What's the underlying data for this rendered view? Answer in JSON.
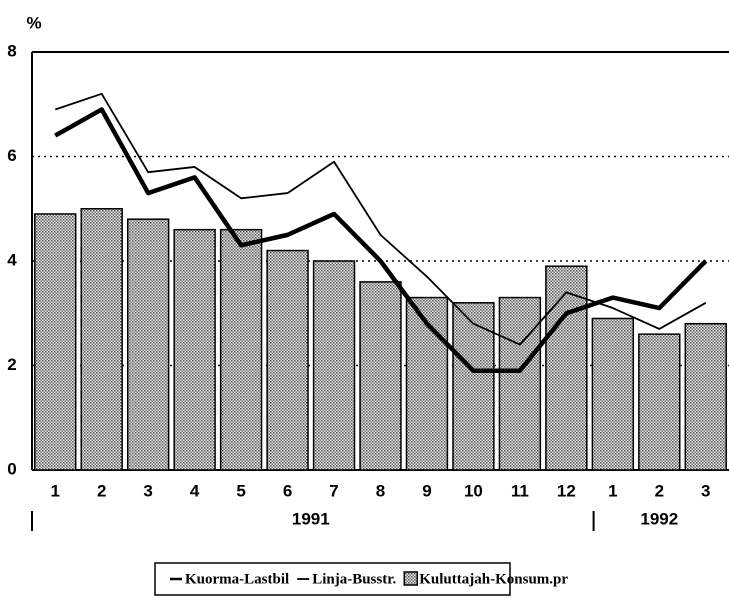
{
  "chart_data": {
    "type": "bar",
    "y_label": "%",
    "categories": [
      "1",
      "2",
      "3",
      "4",
      "5",
      "6",
      "7",
      "8",
      "9",
      "10",
      "11",
      "12",
      "1",
      "2",
      "3"
    ],
    "groups": [
      "1991",
      "1992"
    ],
    "ylim": [
      0,
      8
    ],
    "yticks": [
      0,
      2,
      4,
      6,
      8
    ],
    "grid": true,
    "legend": "bottom",
    "series": [
      {
        "name": "Kuorma-Lastbil",
        "type": "line",
        "color": "#000",
        "line_width": 4.5,
        "values": [
          6.4,
          6.9,
          5.3,
          5.6,
          4.3,
          4.5,
          4.9,
          4.0,
          2.8,
          1.9,
          1.9,
          3.0,
          3.3,
          3.1,
          4.0
        ]
      },
      {
        "name": "Linja-Busstr.",
        "type": "line",
        "color": "#000",
        "line_width": 1.8,
        "values": [
          6.9,
          7.2,
          5.7,
          5.8,
          5.2,
          5.3,
          5.9,
          4.5,
          3.7,
          2.8,
          2.4,
          3.4,
          3.1,
          2.7,
          3.2
        ]
      },
      {
        "name": "Kuluttajah-Konsum.pr",
        "type": "bar",
        "color": "#b8b8b8",
        "values": [
          4.9,
          5.0,
          4.8,
          4.6,
          4.6,
          4.2,
          4.0,
          3.6,
          3.3,
          3.2,
          3.3,
          3.9,
          2.9,
          2.6,
          2.8
        ]
      }
    ]
  }
}
